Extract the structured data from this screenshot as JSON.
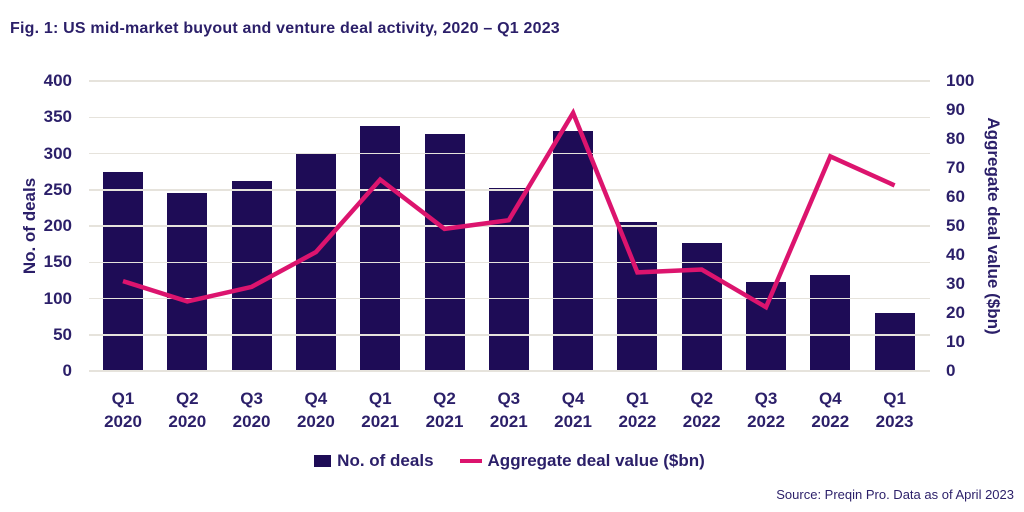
{
  "title": "Fig. 1: US mid-market buyout and venture deal activity, 2020 – Q1 2023",
  "source_note": "Source: Preqin Pro. Data as of April 2023",
  "colors": {
    "bar_navy": "#1e0c56",
    "text_navy": "#2b1f69",
    "line_pink": "#dc146e",
    "gridline": "#e6e3dc"
  },
  "left_axis": {
    "label": "No. of deals",
    "ticks": [
      0,
      50,
      100,
      150,
      200,
      250,
      300,
      350,
      400
    ],
    "max": 400
  },
  "right_axis": {
    "label": "Aggregate deal value ($bn)",
    "ticks": [
      0,
      10,
      20,
      30,
      40,
      50,
      60,
      70,
      80,
      90,
      100
    ],
    "max": 100
  },
  "legend": {
    "bars_label": "No. of deals",
    "line_label": "Aggregate deal value ($bn)"
  },
  "chart_data": {
    "type": "bar",
    "subtype": "combo-bar-line",
    "title": "Fig. 1: US mid-market buyout and venture deal activity, 2020 – Q1 2023",
    "categories": [
      "Q1 2020",
      "Q2 2020",
      "Q3 2020",
      "Q4 2020",
      "Q1 2021",
      "Q2 2021",
      "Q3 2021",
      "Q4 2021",
      "Q1 2022",
      "Q2 2022",
      "Q3 2022",
      "Q4 2022",
      "Q1 2023"
    ],
    "series": [
      {
        "name": "No. of deals",
        "type": "bar",
        "axis": "left",
        "values": [
          275,
          245,
          262,
          299,
          338,
          327,
          252,
          331,
          205,
          177,
          123,
          132,
          80
        ]
      },
      {
        "name": "Aggregate deal value ($bn)",
        "type": "line",
        "axis": "right",
        "values": [
          31,
          24,
          29,
          41,
          66,
          49,
          52,
          89,
          34,
          35,
          22,
          74,
          64
        ]
      }
    ],
    "ylabel_left": "No. of deals",
    "ylabel_right": "Aggregate deal value ($bn)",
    "ylim_left": [
      0,
      400
    ],
    "ylim_right": [
      0,
      100
    ],
    "grid": true,
    "legend_position": "bottom",
    "source": "Source: Preqin Pro. Data as of April 2023"
  }
}
